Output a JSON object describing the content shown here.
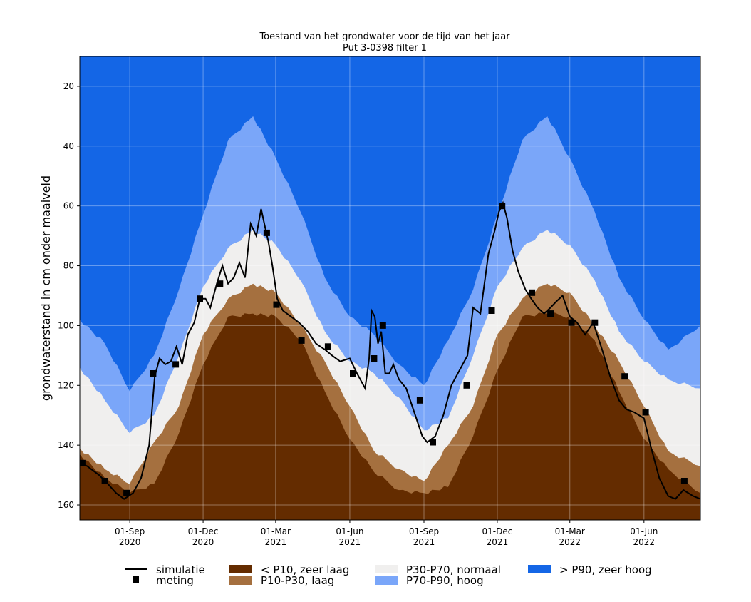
{
  "chart_data": {
    "type": "area",
    "title": "Toestand van het grondwater voor de tijd van het jaar",
    "subtitle": "Put 3-0398 filter 1",
    "xlabel": "",
    "ylabel": "grondwaterstand in cm onder maaiveld",
    "y_inverted": true,
    "ylim": [
      165,
      10
    ],
    "xlim": [
      "2020-07-01",
      "2022-08-10"
    ],
    "yticks": [
      20,
      40,
      60,
      80,
      100,
      120,
      140,
      160
    ],
    "xticks": [
      {
        "date": "2020-09-01",
        "line1": "01-Sep",
        "line2": "2020"
      },
      {
        "date": "2020-12-01",
        "line1": "01-Dec",
        "line2": "2020"
      },
      {
        "date": "2021-03-01",
        "line1": "01-Mar",
        "line2": "2021"
      },
      {
        "date": "2021-06-01",
        "line1": "01-Jun",
        "line2": "2021"
      },
      {
        "date": "2021-09-01",
        "line1": "01-Sep",
        "line2": "2021"
      },
      {
        "date": "2021-12-01",
        "line1": "01-Dec",
        "line2": "2021"
      },
      {
        "date": "2022-03-01",
        "line1": "01-Mar",
        "line2": "2022"
      },
      {
        "date": "2022-06-01",
        "line1": "01-Jun",
        "line2": "2022"
      }
    ],
    "grid": true,
    "legend_position": "bottom",
    "colors": {
      "p10_zeer_laag": "#642c00",
      "p10_p30_laag": "#a5703f",
      "p30_p70_normaal": "#f0efee",
      "p70_p90_hoog": "#7aa6f9",
      "p90_zeer_hoog": "#1466e6",
      "simulatie": "#000000"
    },
    "legend": {
      "simulatie": "simulatie",
      "meting": "meting",
      "p10": "< P10, zeer laag",
      "p10_p30": "P10-P30, laag",
      "p30_p70": "P30-P70, normaal",
      "p70_p90": "P70-P90, hoog",
      "p90": "> P90, zeer hoog"
    },
    "percentile_bands": {
      "x": [
        "2020-07-01",
        "2020-08-01",
        "2020-09-01",
        "2020-10-01",
        "2020-11-01",
        "2020-12-01",
        "2021-01-01",
        "2021-02-01",
        "2021-03-01",
        "2021-04-01",
        "2021-05-01",
        "2021-06-01",
        "2021-07-01",
        "2021-08-01",
        "2021-09-01",
        "2021-10-01",
        "2021-11-01",
        "2021-12-01",
        "2022-01-01",
        "2022-02-01",
        "2022-03-01",
        "2022-04-01",
        "2022-05-01",
        "2022-06-01",
        "2022-07-01",
        "2022-08-10"
      ],
      "P10": [
        143,
        151,
        156,
        153,
        136,
        113,
        97,
        96,
        97,
        105,
        122,
        138,
        149,
        155,
        156,
        154,
        137,
        115,
        97,
        96,
        97,
        105,
        122,
        138,
        148,
        156
      ],
      "P30": [
        141,
        148,
        153,
        139,
        127,
        103,
        91,
        86,
        89,
        100,
        112,
        127,
        142,
        148,
        152,
        140,
        127,
        103,
        91,
        86,
        89,
        100,
        112,
        127,
        142,
        147
      ],
      "P70": [
        114,
        125,
        136,
        130,
        110,
        87,
        74,
        68,
        73,
        85,
        102,
        112,
        116,
        124,
        135,
        131,
        110,
        87,
        74,
        68,
        73,
        85,
        102,
        112,
        118,
        121
      ],
      "P90": [
        98,
        106,
        122,
        110,
        88,
        63,
        38,
        30,
        44,
        62,
        84,
        97,
        103,
        113,
        120,
        105,
        88,
        63,
        38,
        30,
        44,
        62,
        84,
        98,
        108,
        100
      ]
    },
    "series": [
      {
        "name": "simulatie",
        "x": [
          "2020-07-01",
          "2020-07-10",
          "2020-07-25",
          "2020-08-05",
          "2020-08-15",
          "2020-08-25",
          "2020-09-05",
          "2020-09-15",
          "2020-09-25",
          "2020-10-02",
          "2020-10-08",
          "2020-10-15",
          "2020-10-22",
          "2020-10-29",
          "2020-11-05",
          "2020-11-12",
          "2020-11-20",
          "2020-11-27",
          "2020-12-04",
          "2020-12-10",
          "2020-12-18",
          "2020-12-25",
          "2021-01-01",
          "2021-01-08",
          "2021-01-15",
          "2021-01-22",
          "2021-01-29",
          "2021-02-05",
          "2021-02-11",
          "2021-02-15",
          "2021-02-20",
          "2021-02-25",
          "2021-03-03",
          "2021-03-10",
          "2021-03-20",
          "2021-03-30",
          "2021-04-10",
          "2021-04-20",
          "2021-05-01",
          "2021-05-10",
          "2021-05-20",
          "2021-06-01",
          "2021-06-10",
          "2021-06-20",
          "2021-06-25",
          "2021-06-28",
          "2021-07-02",
          "2021-07-06",
          "2021-07-10",
          "2021-07-15",
          "2021-07-20",
          "2021-07-25",
          "2021-08-01",
          "2021-08-10",
          "2021-08-20",
          "2021-08-30",
          "2021-09-05",
          "2021-09-15",
          "2021-09-25",
          "2021-10-05",
          "2021-10-15",
          "2021-10-25",
          "2021-11-01",
          "2021-11-10",
          "2021-11-20",
          "2021-11-28",
          "2021-12-03",
          "2021-12-08",
          "2021-12-13",
          "2021-12-20",
          "2021-12-27",
          "2022-01-05",
          "2022-01-12",
          "2022-01-20",
          "2022-01-28",
          "2022-02-05",
          "2022-02-12",
          "2022-02-20",
          "2022-03-01",
          "2022-03-10",
          "2022-03-20",
          "2022-03-30",
          "2022-04-10",
          "2022-04-20",
          "2022-05-01",
          "2022-05-10",
          "2022-05-20",
          "2022-06-01",
          "2022-06-10",
          "2022-06-20",
          "2022-07-01",
          "2022-07-10",
          "2022-07-20",
          "2022-08-01",
          "2022-08-10"
        ],
        "values": [
          146,
          147,
          150,
          153,
          156,
          158,
          156,
          151,
          140,
          117,
          111,
          113,
          112,
          107,
          113,
          103,
          99,
          91,
          91,
          94,
          86,
          80,
          86,
          84,
          79,
          84,
          66,
          70,
          61,
          66,
          72,
          80,
          91,
          95,
          97,
          99,
          102,
          106,
          108,
          110,
          112,
          111,
          116,
          121,
          111,
          95,
          97,
          106,
          102,
          116,
          116,
          113,
          118,
          121,
          129,
          137,
          139,
          137,
          130,
          120,
          115,
          110,
          94,
          96,
          76,
          68,
          62,
          59,
          64,
          75,
          82,
          88,
          91,
          94,
          96,
          94,
          92,
          90,
          97,
          99,
          103,
          99,
          108,
          117,
          125,
          128,
          129,
          131,
          141,
          151,
          157,
          158,
          155,
          157,
          158
        ]
      },
      {
        "name": "meting",
        "type": "scatter",
        "x": [
          "2020-07-04",
          "2020-08-01",
          "2020-08-28",
          "2020-09-30",
          "2020-10-28",
          "2020-11-27",
          "2020-12-22",
          "2021-02-18",
          "2021-03-02",
          "2021-04-02",
          "2021-05-05",
          "2021-06-05",
          "2021-07-01",
          "2021-07-12",
          "2021-08-27",
          "2021-09-12",
          "2021-10-24",
          "2021-11-24",
          "2021-12-07",
          "2022-01-13",
          "2022-02-05",
          "2022-03-03",
          "2022-04-01",
          "2022-05-08",
          "2022-06-03",
          "2022-07-21"
        ],
        "values": [
          146,
          152,
          156,
          116,
          113,
          91,
          86,
          69,
          93,
          105,
          107,
          116,
          111,
          100,
          125,
          139,
          120,
          95,
          60,
          89,
          96,
          99,
          99,
          117,
          129,
          152
        ]
      }
    ]
  }
}
